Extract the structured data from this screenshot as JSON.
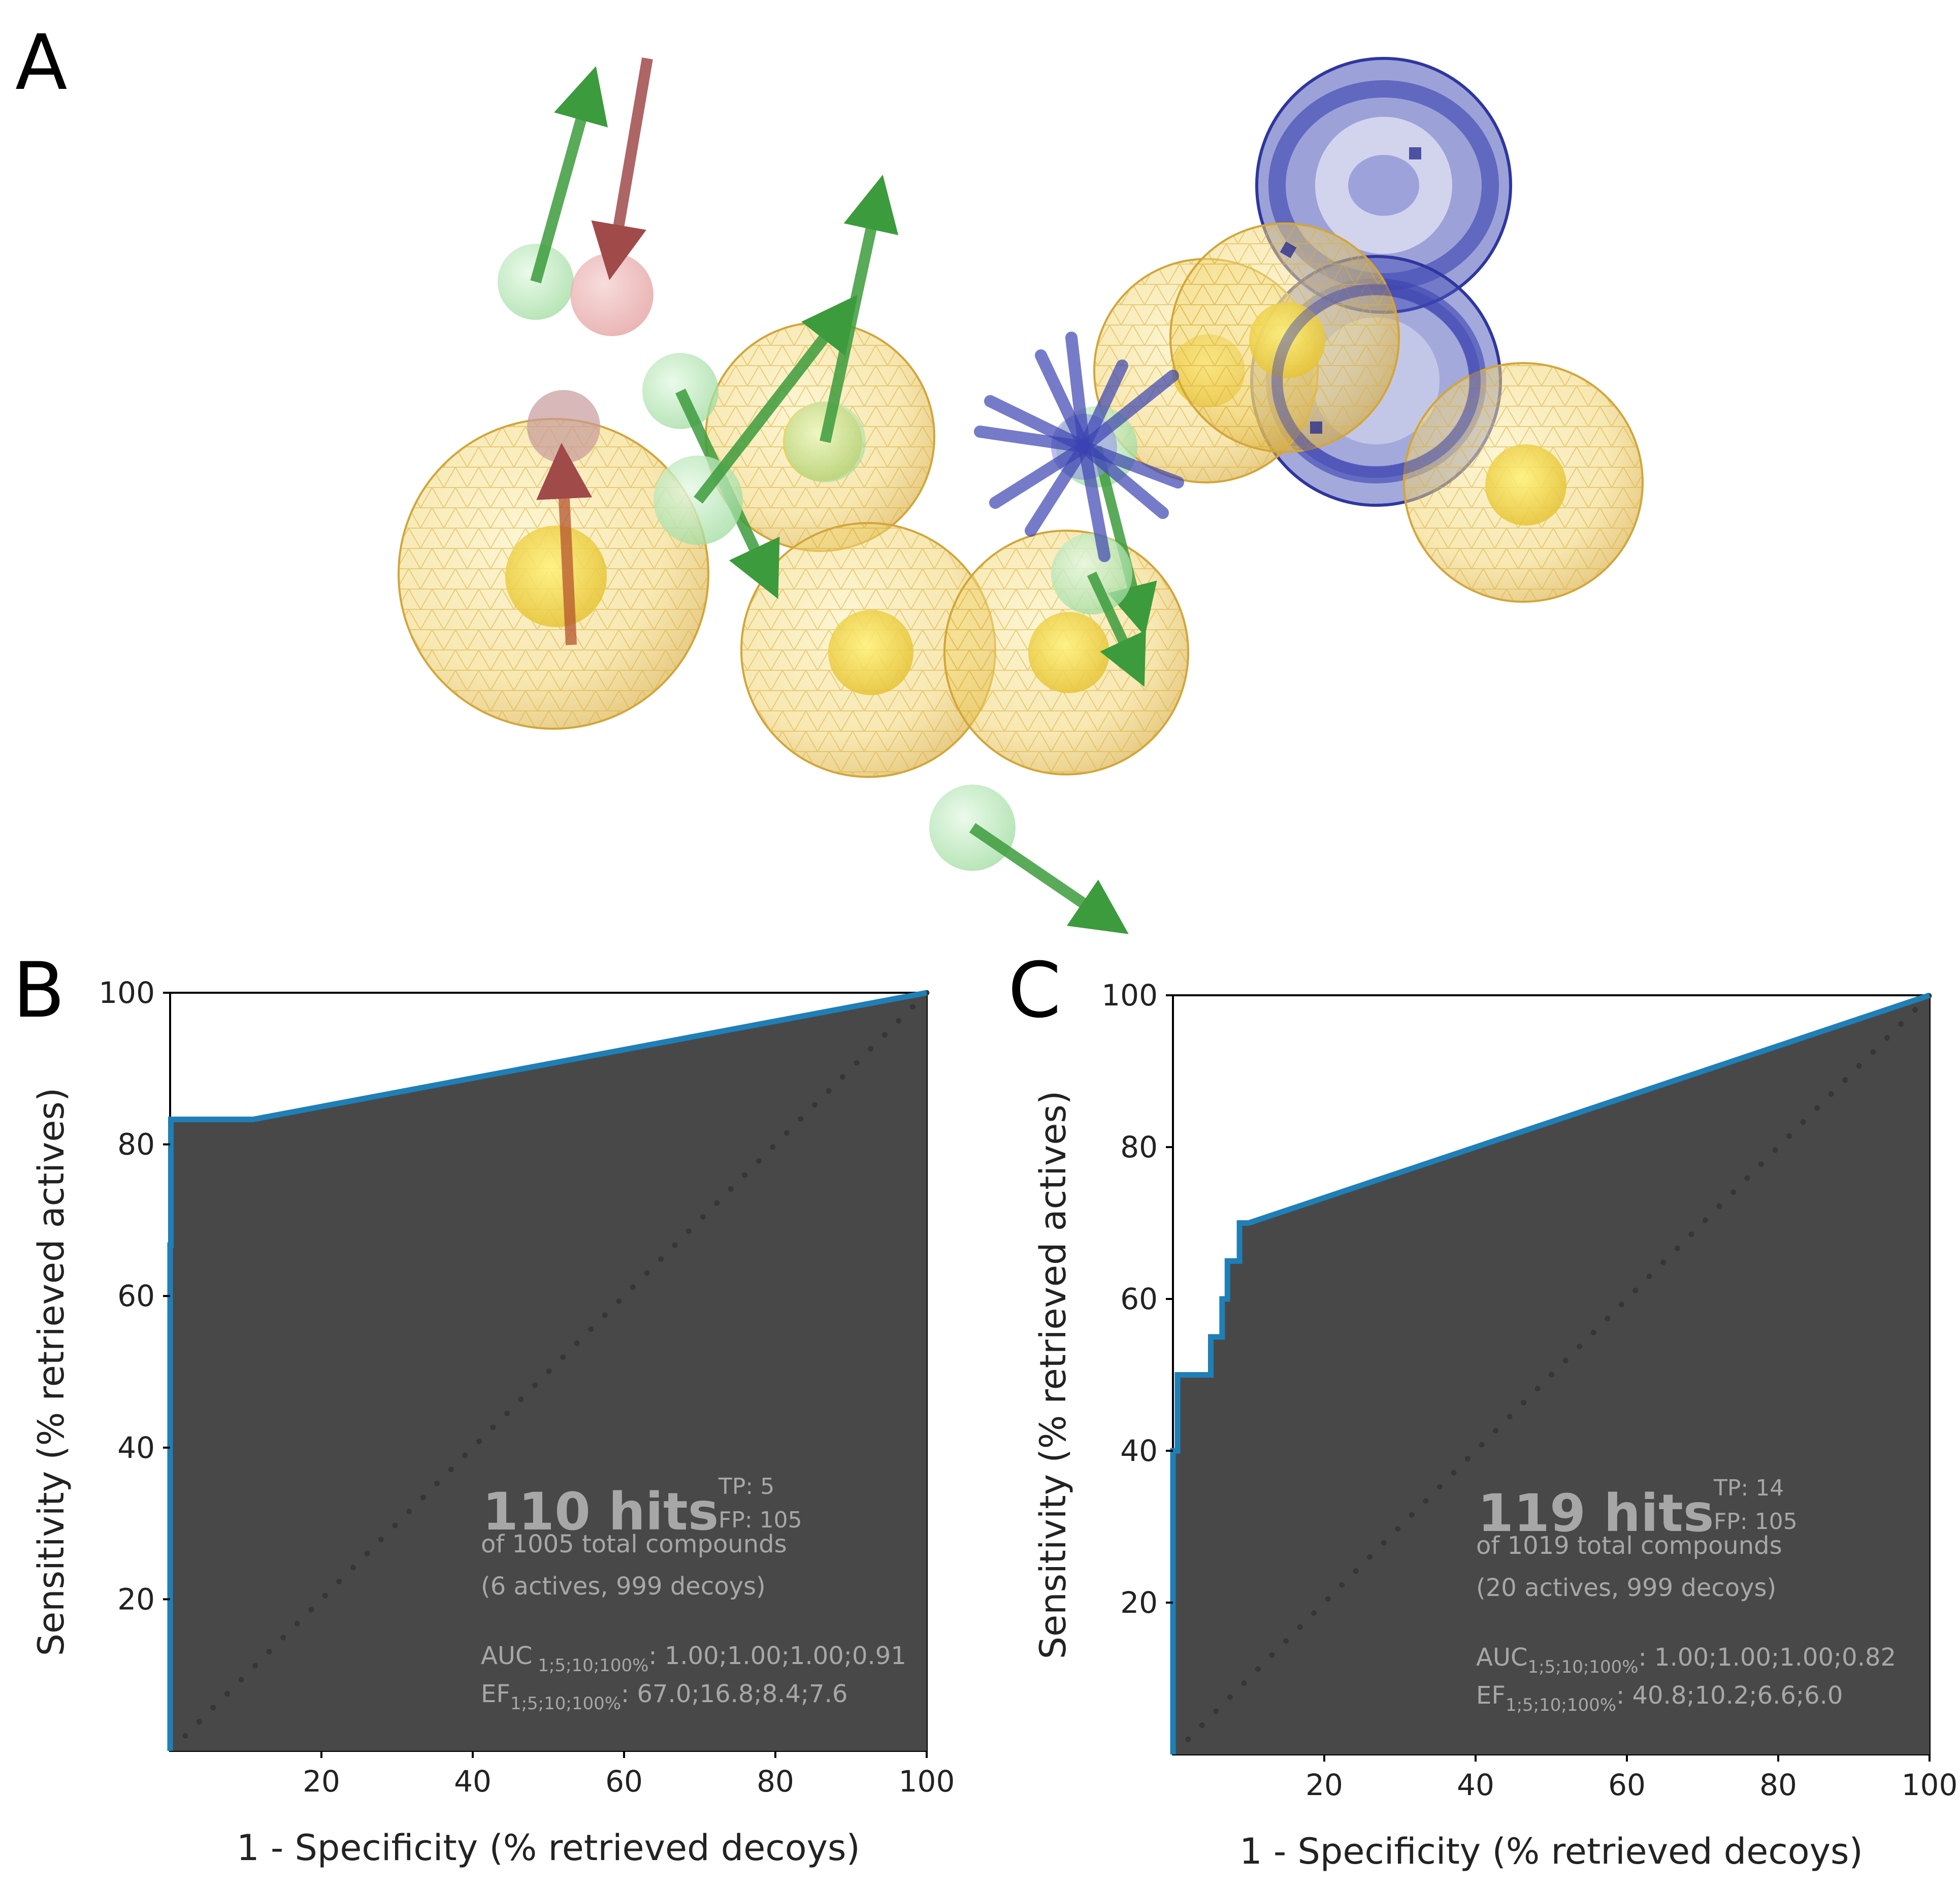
{
  "panel_labels": {
    "a": "A",
    "b": "B",
    "c": "C"
  },
  "colors": {
    "roc_line": "#1f7fb7",
    "roc_fill": "#484848",
    "diagonal": "#363636",
    "hydrophobic": "#f2cd3a",
    "hbond_donor": "#3dbb3d",
    "hbond_acceptor": "#d96d6d",
    "aromatic_ring": "#5c63c4",
    "annotation_text": "#a7a7a7"
  },
  "chart_data": [
    {
      "type": "area",
      "id": "B",
      "title": "",
      "xlabel": "1 - Specificity (% retrieved decoys)",
      "ylabel": "Sensitivity (% retrieved actives)",
      "xlim": [
        0,
        100
      ],
      "ylim": [
        0,
        100
      ],
      "xticks": [
        "20",
        "40",
        "60",
        "80",
        "100"
      ],
      "yticks": [
        "20",
        "40",
        "60",
        "80",
        "100"
      ],
      "series": [
        {
          "name": "ROC",
          "x": [
            0,
            0,
            0.1,
            0.1,
            1.5,
            1.5,
            11,
            100
          ],
          "y": [
            0,
            66.7,
            66.7,
            83.3,
            83.3,
            83.3,
            83.3,
            100
          ]
        }
      ],
      "annotation": {
        "hits": "110 hits",
        "tp": "TP: 5",
        "fp": "FP: 105",
        "total": "of 1005 total compounds",
        "composition": "(6 actives, 999 decoys)",
        "auc_label": "AUC",
        "auc_sub": " 1;5;10;100%",
        "auc_values": ": 1.00;1.00;1.00;0.91",
        "ef_label": "EF",
        "ef_sub": "1;5;10;100%",
        "ef_values": ": 67.0;16.8;8.4;7.6"
      }
    },
    {
      "type": "area",
      "id": "C",
      "title": "",
      "xlabel": "1 - Specificity (% retrieved decoys)",
      "ylabel": "Sensitivity (% retrieved actives)",
      "xlim": [
        0,
        100
      ],
      "ylim": [
        0,
        100
      ],
      "xticks": [
        "20",
        "40",
        "60",
        "80",
        "100"
      ],
      "yticks": [
        "20",
        "40",
        "60",
        "80",
        "100"
      ],
      "series": [
        {
          "name": "ROC",
          "x": [
            0,
            0,
            0.6,
            0.6,
            5,
            5,
            6.5,
            6.5,
            7.2,
            7.2,
            8.8,
            8.8,
            10,
            100
          ],
          "y": [
            0,
            40,
            40,
            50,
            50,
            55,
            55,
            60,
            60,
            65,
            65,
            70,
            70,
            100
          ]
        }
      ],
      "annotation": {
        "hits": "119 hits",
        "tp": "TP: 14",
        "fp": "FP: 105",
        "total": "of 1019 total compounds",
        "composition": "(20 actives, 999 decoys)",
        "auc_label": "AUC",
        "auc_sub": "1;5;10;100%",
        "auc_values": ": 1.00;1.00;1.00;0.82",
        "ef_label": "EF",
        "ef_sub": "1;5;10;100%",
        "ef_values": ": 40.8;10.2;6.6;6.0"
      }
    }
  ]
}
